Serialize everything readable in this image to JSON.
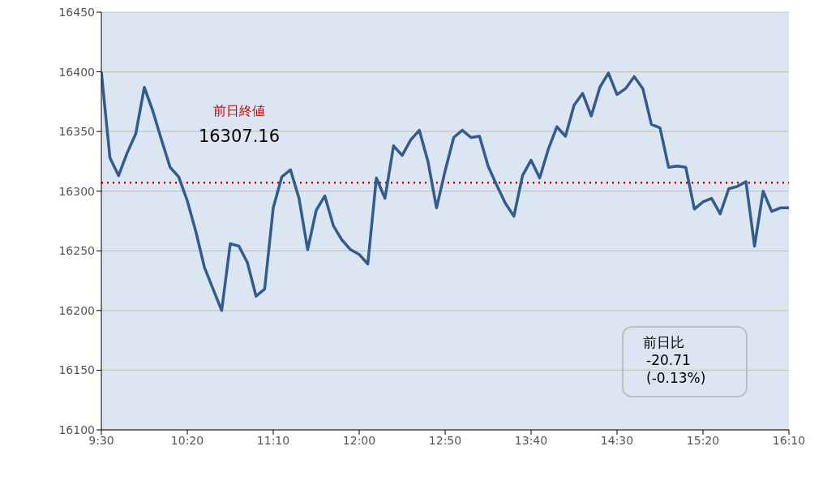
{
  "chart_data": {
    "type": "line",
    "categories": [
      "9:30",
      null,
      null,
      null,
      null,
      null,
      null,
      null,
      null,
      null,
      "10:20",
      null,
      null,
      null,
      null,
      null,
      null,
      null,
      null,
      null,
      "11:10",
      null,
      null,
      null,
      null,
      null,
      null,
      null,
      null,
      null,
      "12:00",
      null,
      null,
      null,
      null,
      null,
      null,
      null,
      null,
      null,
      "12:50",
      null,
      null,
      null,
      null,
      null,
      null,
      null,
      null,
      null,
      "13:40",
      null,
      null,
      null,
      null,
      null,
      null,
      null,
      null,
      null,
      "14:30",
      null,
      null,
      null,
      null,
      null,
      null,
      null,
      null,
      null,
      "15:20",
      null,
      null,
      null,
      null,
      null,
      null,
      null,
      null,
      null,
      "16:10"
    ],
    "series": [
      {
        "color": "#335c8e",
        "values": [
          16400,
          16328,
          16313,
          16332,
          16348,
          16387,
          16367,
          16343,
          16320,
          16312,
          16292,
          16266,
          16236,
          16218,
          16200,
          16256,
          16254,
          16240,
          16212,
          16218,
          16286,
          16312,
          16318,
          16294,
          16251,
          16284,
          16296,
          16271,
          16259,
          16251,
          16247,
          16239,
          16311,
          16294,
          16338,
          16330,
          16343,
          16351,
          16325,
          16286,
          16317,
          16345,
          16351,
          16345,
          16346,
          16321,
          16305,
          16290,
          16279,
          16313,
          16326,
          16311,
          16335,
          16354,
          16346,
          16372,
          16382,
          16363,
          16387,
          16399,
          16381,
          16386,
          16396,
          16386,
          16356,
          16353,
          16320,
          16321,
          16320,
          16285,
          16291,
          16294,
          16281,
          16302,
          16304,
          16308,
          16254,
          16300,
          16283,
          16286,
          16286
        ]
      }
    ],
    "ylim": [
      16100,
      16450
    ],
    "yticks": [
      16100,
      16150,
      16200,
      16250,
      16300,
      16350,
      16400,
      16450
    ],
    "grid": "y",
    "legend": false,
    "marker": "none",
    "line_style": "solid",
    "ref_lines": [
      {
        "axis": "y",
        "value": 16307.16,
        "label": "前日終値",
        "color": "#c00000",
        "line_style": "dotted"
      }
    ],
    "annotations": [
      {
        "text": "16307.16",
        "y": 16307.16
      },
      "前日比",
      "-20.71",
      "(-0.13%)"
    ]
  }
}
